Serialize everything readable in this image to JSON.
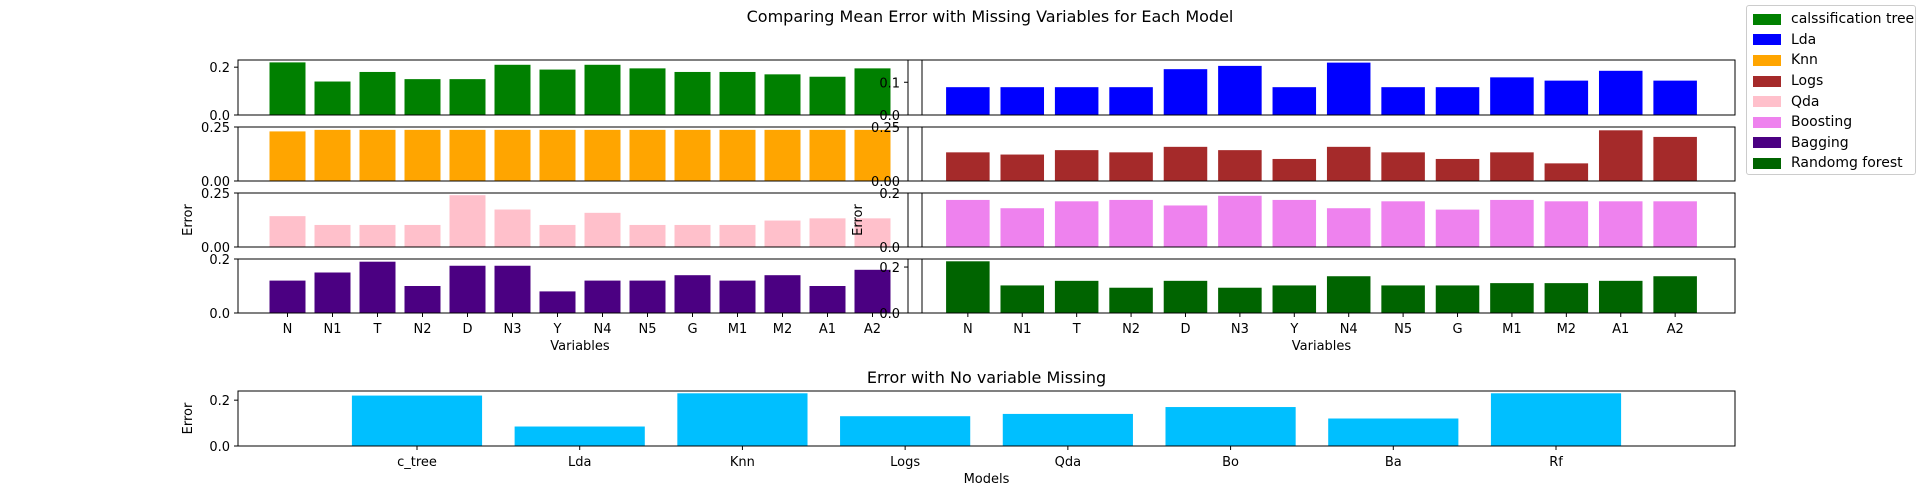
{
  "title": "Comparing Mean Error with Missing Variables for Each Model",
  "chart_data": [
    {
      "type": "bar",
      "model": "calssification tree",
      "color": "#008000",
      "categories": [
        "N",
        "N1",
        "T",
        "N2",
        "D",
        "N3",
        "Y",
        "N4",
        "N5",
        "G",
        "M1",
        "M2",
        "A1",
        "A2"
      ],
      "values": [
        0.22,
        0.14,
        0.18,
        0.15,
        0.15,
        0.21,
        0.19,
        0.21,
        0.195,
        0.18,
        0.18,
        0.17,
        0.16,
        0.195
      ],
      "ylim": [
        0,
        0.23
      ],
      "yticks": [
        "0.0",
        "0.2"
      ]
    },
    {
      "type": "bar",
      "model": "Knn",
      "color": "#ffa500",
      "categories": [
        "N",
        "N1",
        "T",
        "N2",
        "D",
        "N3",
        "Y",
        "N4",
        "N5",
        "G",
        "M1",
        "M2",
        "A1",
        "A2"
      ],
      "values": [
        0.225,
        0.232,
        0.232,
        0.232,
        0.232,
        0.232,
        0.232,
        0.232,
        0.232,
        0.232,
        0.232,
        0.232,
        0.232,
        0.232
      ],
      "ylim": [
        0,
        0.245
      ],
      "yticks": [
        "0.00",
        "0.25"
      ]
    },
    {
      "type": "bar",
      "model": "Qda",
      "color": "#ffc0cb",
      "categories": [
        "N",
        "N1",
        "T",
        "N2",
        "D",
        "N3",
        "Y",
        "N4",
        "N5",
        "G",
        "M1",
        "M2",
        "A1",
        "A2"
      ],
      "values": [
        0.14,
        0.1,
        0.1,
        0.1,
        0.235,
        0.17,
        0.1,
        0.155,
        0.1,
        0.1,
        0.1,
        0.12,
        0.13,
        0.13
      ],
      "ylim": [
        0,
        0.245
      ],
      "yticks": [
        "0.00",
        "0.25"
      ],
      "ylabel": "Error"
    },
    {
      "type": "bar",
      "model": "Bagging",
      "color": "#4b0082",
      "categories": [
        "N",
        "N1",
        "T",
        "N2",
        "D",
        "N3",
        "Y",
        "N4",
        "N5",
        "G",
        "M1",
        "M2",
        "A1",
        "A2"
      ],
      "values": [
        0.12,
        0.15,
        0.19,
        0.1,
        0.175,
        0.175,
        0.08,
        0.12,
        0.12,
        0.14,
        0.12,
        0.14,
        0.1,
        0.16
      ],
      "ylim": [
        0,
        0.2
      ],
      "yticks": [
        "0.0",
        "0.2"
      ],
      "xlabel": "Variables"
    },
    {
      "type": "bar",
      "model": "Lda",
      "color": "#0000ff",
      "categories": [
        "N",
        "N1",
        "T",
        "N2",
        "D",
        "N3",
        "Y",
        "N4",
        "N5",
        "G",
        "M1",
        "M2",
        "A1",
        "A2"
      ],
      "values": [
        0.085,
        0.085,
        0.085,
        0.085,
        0.14,
        0.15,
        0.085,
        0.16,
        0.085,
        0.085,
        0.115,
        0.105,
        0.135,
        0.105
      ],
      "ylim": [
        0,
        0.168
      ],
      "yticks": [
        "0.0",
        "0.1"
      ]
    },
    {
      "type": "bar",
      "model": "Logs",
      "color": "#a52a2a",
      "categories": [
        "N",
        "N1",
        "T",
        "N2",
        "D",
        "N3",
        "Y",
        "N4",
        "N5",
        "G",
        "M1",
        "M2",
        "A1",
        "A2"
      ],
      "values": [
        0.13,
        0.12,
        0.14,
        0.13,
        0.155,
        0.14,
        0.1,
        0.155,
        0.13,
        0.1,
        0.13,
        0.08,
        0.23,
        0.2
      ],
      "ylim": [
        0,
        0.245
      ],
      "yticks": [
        "0.00",
        "0.25"
      ]
    },
    {
      "type": "bar",
      "model": "Boosting",
      "color": "#ee82ee",
      "categories": [
        "N",
        "N1",
        "T",
        "N2",
        "D",
        "N3",
        "Y",
        "N4",
        "N5",
        "G",
        "M1",
        "M2",
        "A1",
        "A2"
      ],
      "values": [
        0.17,
        0.14,
        0.165,
        0.17,
        0.15,
        0.185,
        0.17,
        0.14,
        0.165,
        0.135,
        0.17,
        0.165,
        0.165,
        0.165
      ],
      "ylim": [
        0,
        0.195
      ],
      "yticks": [
        "0.0",
        "0.2"
      ],
      "ylabel": "Error"
    },
    {
      "type": "bar",
      "model": "Randomg forest",
      "color": "#006400",
      "categories": [
        "N",
        "N1",
        "T",
        "N2",
        "D",
        "N3",
        "Y",
        "N4",
        "N5",
        "G",
        "M1",
        "M2",
        "A1",
        "A2"
      ],
      "values": [
        0.225,
        0.12,
        0.14,
        0.11,
        0.14,
        0.11,
        0.12,
        0.16,
        0.12,
        0.12,
        0.13,
        0.13,
        0.14,
        0.16
      ],
      "ylim": [
        0,
        0.235
      ],
      "yticks": [
        "0.0",
        "0.2"
      ],
      "xlabel": "Variables"
    },
    {
      "type": "bar",
      "title": "Error with No variable Missing",
      "color": "#00bfff",
      "categories": [
        "c_tree",
        "Lda",
        "Knn",
        "Logs",
        "Qda",
        "Bo",
        "Ba",
        "Rf"
      ],
      "values": [
        0.22,
        0.085,
        0.23,
        0.13,
        0.14,
        0.17,
        0.12,
        0.23
      ],
      "ylim": [
        0,
        0.24
      ],
      "yticks": [
        "0.0",
        "0.2"
      ],
      "xlabel": "Models",
      "ylabel": "Error"
    }
  ],
  "legend": [
    {
      "label": "calssification tree",
      "color": "#008000"
    },
    {
      "label": "Lda",
      "color": "#0000ff"
    },
    {
      "label": "Knn",
      "color": "#ffa500"
    },
    {
      "label": "Logs",
      "color": "#a52a2a"
    },
    {
      "label": "Qda",
      "color": "#ffc0cb"
    },
    {
      "label": "Boosting",
      "color": "#ee82ee"
    },
    {
      "label": "Bagging",
      "color": "#4b0082"
    },
    {
      "label": "Randomg forest",
      "color": "#006400"
    }
  ]
}
